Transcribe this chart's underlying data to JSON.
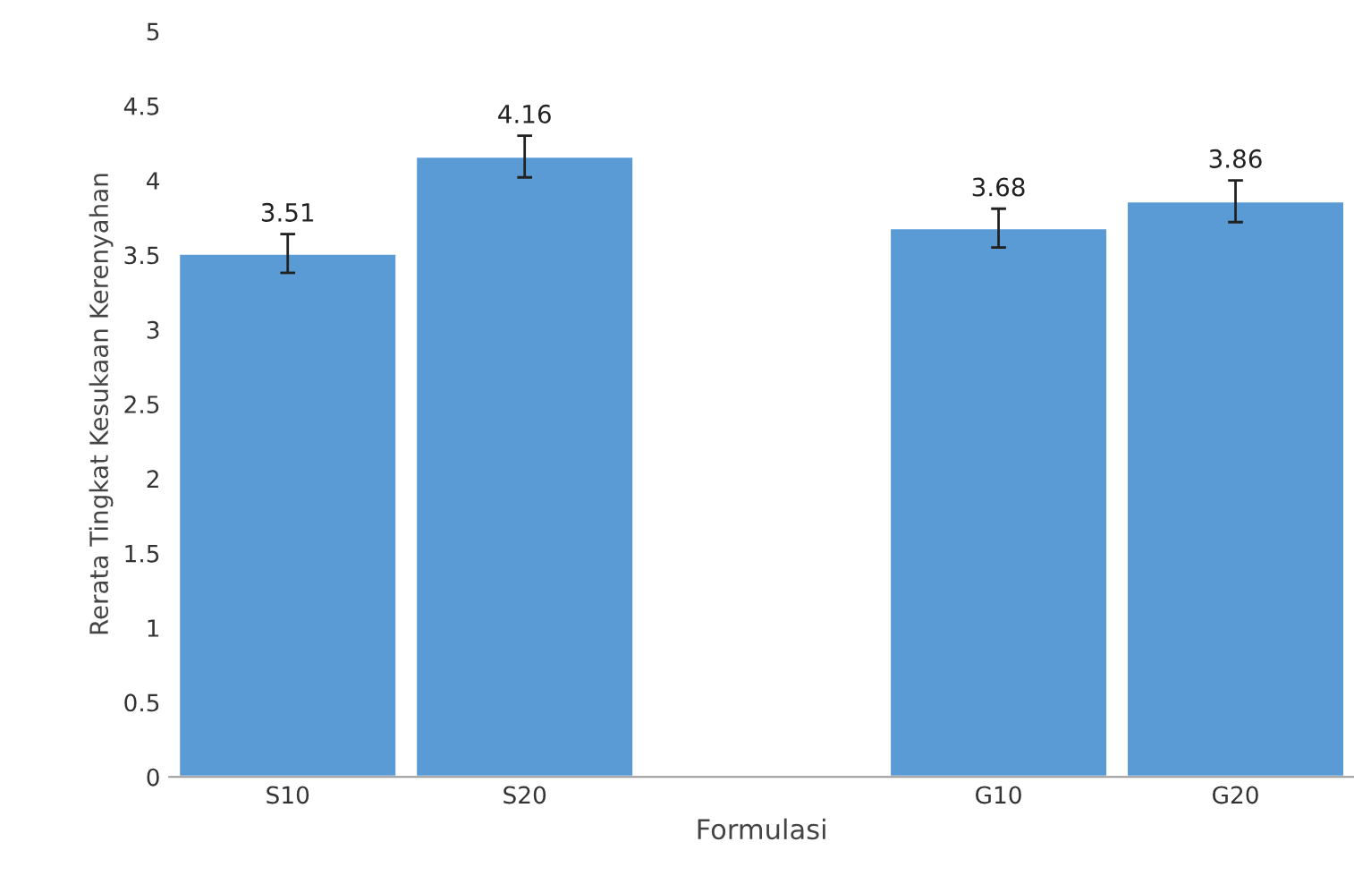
{
  "chart_data": {
    "type": "bar",
    "xlabel": "Formulasi",
    "ylabel": "Rerata Tingkat Kesukaan Kerenyahan",
    "categories": [
      "S10",
      "S20",
      null,
      "G10",
      "G20"
    ],
    "values": [
      3.51,
      4.16,
      null,
      3.68,
      3.86
    ],
    "errors": [
      0.13,
      0.14,
      null,
      0.13,
      0.14
    ],
    "color": "#5b9bd5",
    "ylim": [
      0,
      5
    ],
    "yticks": [
      0,
      0.5,
      1,
      1.5,
      2,
      2.5,
      3,
      3.5,
      4,
      4.5,
      5
    ],
    "data_labels": true,
    "grid": false,
    "legend": false
  }
}
